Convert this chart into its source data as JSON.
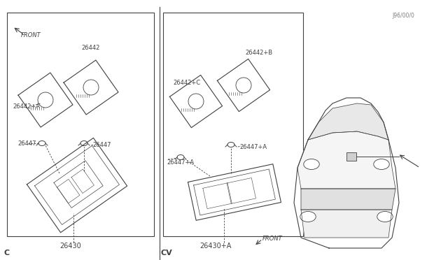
{
  "bg_color": "#ffffff",
  "line_color": "#404040",
  "text_color": "#404040",
  "fig_width": 6.4,
  "fig_height": 3.72,
  "dpi": 100,
  "watermark": "J96/00/0",
  "section_c_label": "C",
  "section_cv_label": "CV",
  "part_26430": "26430",
  "part_26430A": "26430+A",
  "part_26447": "26447",
  "part_26447A": "26447+A",
  "part_26442": "26442",
  "part_26442A": "26442+A",
  "part_26442B": "26442+B",
  "part_26442C": "26442+C",
  "front_label": "FRONT"
}
